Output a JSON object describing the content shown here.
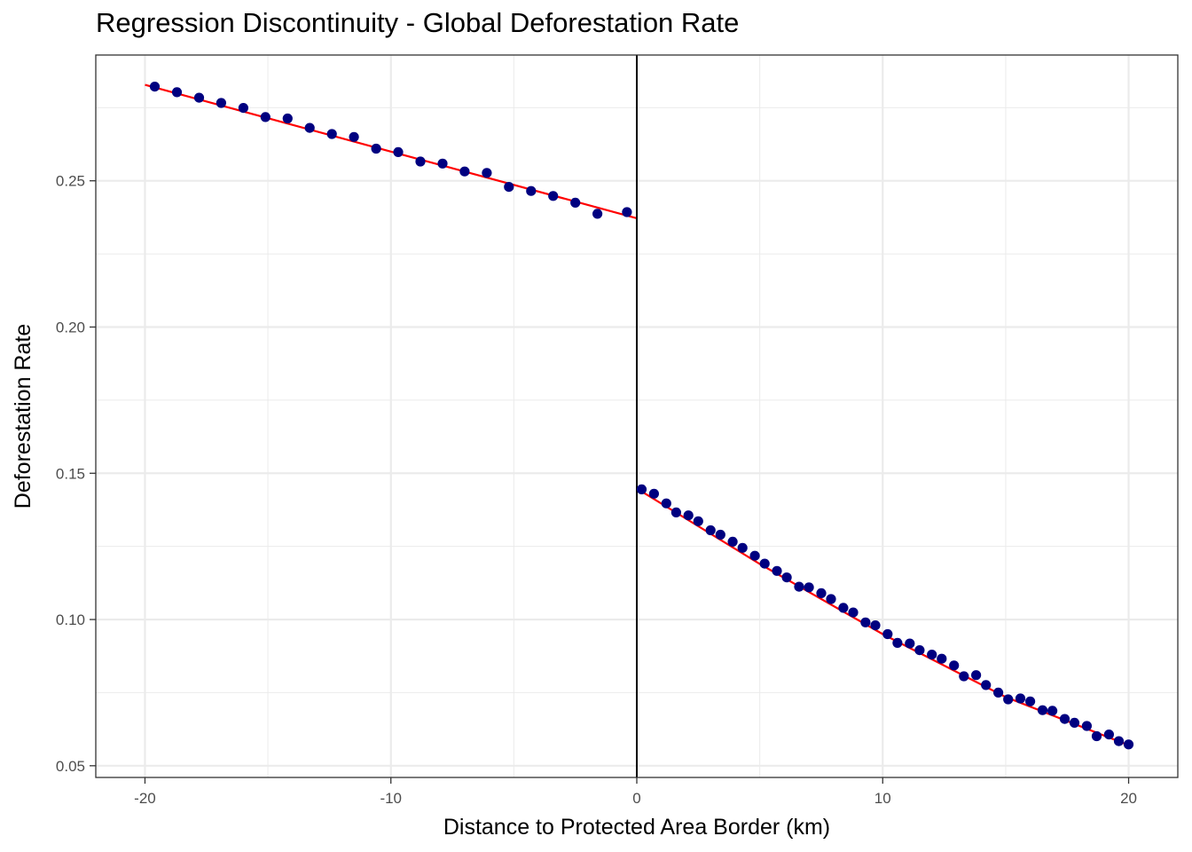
{
  "chart_data": {
    "type": "scatter",
    "title": "Regression Discontinuity - Global Deforestation Rate",
    "xlabel": "Distance to Protected Area Border (km)",
    "ylabel": "Deforestation Rate",
    "xlim": [
      -22,
      22
    ],
    "ylim": [
      0.046,
      0.293
    ],
    "x_ticks": [
      -20,
      -10,
      0,
      10,
      20
    ],
    "x_tick_labels": [
      "-20",
      "-10",
      "0",
      "10",
      "20"
    ],
    "y_ticks": [
      0.05,
      0.1,
      0.15,
      0.2,
      0.25
    ],
    "y_tick_labels": [
      "0.05",
      "0.10",
      "0.15",
      "0.20",
      "0.25"
    ],
    "grid": true,
    "cutoff": 0,
    "colors": {
      "points": "#000080",
      "fit": "#ff0000",
      "cutoff_line": "#000000",
      "grid": "#ebebeb"
    },
    "series": [
      {
        "name": "",
        "points": [
          [
            -19.6,
            0.2822
          ],
          [
            -18.7,
            0.2803
          ],
          [
            -17.8,
            0.2784
          ],
          [
            -16.9,
            0.2766
          ],
          [
            -16.0,
            0.2749
          ],
          [
            -15.1,
            0.2718
          ],
          [
            -14.2,
            0.2713
          ],
          [
            -13.3,
            0.2681
          ],
          [
            -12.4,
            0.266
          ],
          [
            -11.5,
            0.265
          ],
          [
            -10.6,
            0.261
          ],
          [
            -9.7,
            0.2598
          ],
          [
            -8.8,
            0.2566
          ],
          [
            -7.9,
            0.2559
          ],
          [
            -7.0,
            0.2532
          ],
          [
            -6.1,
            0.2527
          ],
          [
            -5.2,
            0.2479
          ],
          [
            -4.3,
            0.2465
          ],
          [
            -3.4,
            0.2448
          ],
          [
            -2.5,
            0.2425
          ],
          [
            -1.6,
            0.2387
          ],
          [
            -0.4,
            0.2393
          ],
          [
            0.2,
            0.1445
          ],
          [
            0.7,
            0.143
          ],
          [
            1.2,
            0.1397
          ],
          [
            1.6,
            0.1366
          ],
          [
            2.1,
            0.1356
          ],
          [
            2.5,
            0.1336
          ],
          [
            3.0,
            0.1305
          ],
          [
            3.4,
            0.129
          ],
          [
            3.9,
            0.1266
          ],
          [
            4.3,
            0.1245
          ],
          [
            4.8,
            0.1218
          ],
          [
            5.2,
            0.1191
          ],
          [
            5.7,
            0.1166
          ],
          [
            6.1,
            0.1144
          ],
          [
            6.6,
            0.1112
          ],
          [
            7.0,
            0.111
          ],
          [
            7.5,
            0.109
          ],
          [
            7.9,
            0.107
          ],
          [
            8.4,
            0.104
          ],
          [
            8.8,
            0.1024
          ],
          [
            9.3,
            0.099
          ],
          [
            9.7,
            0.098
          ],
          [
            10.2,
            0.095
          ],
          [
            10.6,
            0.092
          ],
          [
            11.1,
            0.0918
          ],
          [
            11.5,
            0.0895
          ],
          [
            12.0,
            0.088
          ],
          [
            12.4,
            0.0866
          ],
          [
            12.9,
            0.0843
          ],
          [
            13.3,
            0.0806
          ],
          [
            13.8,
            0.081
          ],
          [
            14.2,
            0.0776
          ],
          [
            14.7,
            0.075
          ],
          [
            15.1,
            0.0727
          ],
          [
            15.6,
            0.073
          ],
          [
            16.0,
            0.072
          ],
          [
            16.5,
            0.069
          ],
          [
            16.9,
            0.0688
          ],
          [
            17.4,
            0.066
          ],
          [
            17.8,
            0.0647
          ],
          [
            18.3,
            0.0636
          ],
          [
            18.7,
            0.0601
          ],
          [
            19.2,
            0.0607
          ],
          [
            19.6,
            0.0584
          ],
          [
            20.0,
            0.0573
          ]
        ]
      }
    ],
    "fit_lines": [
      {
        "segment": "left",
        "points": [
          [
            -20,
            0.2828
          ],
          [
            -10,
            0.26
          ],
          [
            0,
            0.2372
          ]
        ]
      },
      {
        "segment": "right",
        "points": [
          [
            0,
            0.1448
          ],
          [
            5,
            0.119
          ],
          [
            10,
            0.095
          ],
          [
            15,
            0.0735
          ],
          [
            20,
            0.057
          ]
        ]
      }
    ]
  }
}
